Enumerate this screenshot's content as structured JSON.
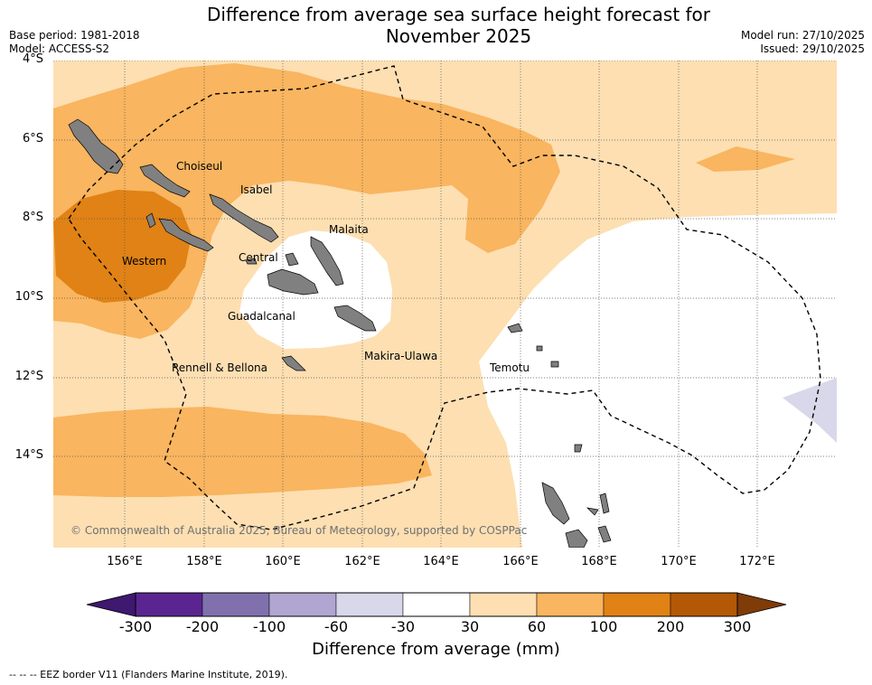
{
  "title_line1": "Difference from average sea surface height forecast for",
  "title_line2": "November 2025",
  "base_period": "Base period: 1981-2018",
  "model": "Model: ACCESS-S2",
  "model_run": "Model run: 27/10/2025",
  "issued": "Issued: 29/10/2025",
  "lat_labels": [
    "4°S",
    "6°S",
    "8°S",
    "10°S",
    "12°S",
    "14°S"
  ],
  "lon_labels": [
    "156°E",
    "158°E",
    "160°E",
    "162°E",
    "164°E",
    "166°E",
    "168°E",
    "170°E",
    "172°E"
  ],
  "provinces": [
    "Choiseul",
    "Isabel",
    "Malaita",
    "Western",
    "Central",
    "Guadalcanal",
    "Makira-Ulawa",
    "Rennell & Bellona",
    "Temotu"
  ],
  "copyright": "© Commonwealth of Australia 2025, Bureau of Meteorology, supported by COSPPac",
  "colorbar": {
    "ticks": [
      "-300",
      "-200",
      "-100",
      "-60",
      "-30",
      "30",
      "60",
      "100",
      "200",
      "300"
    ],
    "colors": [
      "#4a1c7a",
      "#5a2590",
      "#8071ae",
      "#b0a6d1",
      "#d8d8ea",
      "#ffffff",
      "#fddfb2",
      "#f9b55f",
      "#e08215",
      "#b35806",
      "#7f3b08"
    ],
    "label": "Difference from average (mm)"
  },
  "footnote": "--  --  -- EEZ border V11 (Flanders Marine Institute, 2019).",
  "legend_colors": {
    "light": "#fddfb2",
    "medium": "#f9b55f",
    "dark": "#e08215",
    "neutral": "#ffffff",
    "negative": "#d8d8ea",
    "land": "#808080"
  }
}
